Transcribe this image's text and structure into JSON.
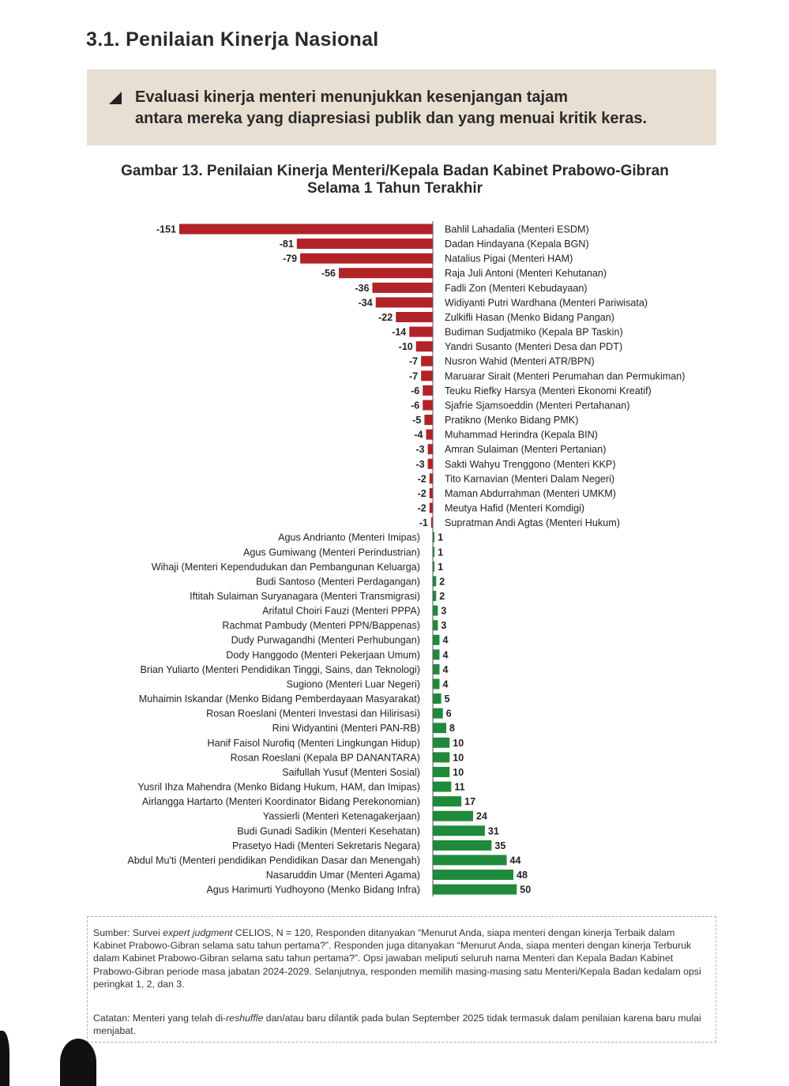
{
  "section": {
    "title": "3.1.   Penilaian Kinerja Nasional"
  },
  "callout": {
    "line1": "Evaluasi kinerja menteri menunjukkan kesenjangan tajam",
    "line2": "antara mereka yang diapresiasi publik dan yang menuai kritik keras."
  },
  "colors": {
    "negative": "#b12327",
    "positive": "#1f8a3b",
    "callout_bg": "#e7dfd1"
  },
  "chart_data": {
    "type": "bar",
    "orientation": "horizontal",
    "title": "Gambar 13. Penilaian Kinerja Menteri/Kepala Badan Kabinet Prabowo-Gibran",
    "subtitle": "Selama 1 Tahun Terakhir",
    "xlabel": "",
    "ylabel": "",
    "xlim": [
      -151,
      50
    ],
    "grid": false,
    "categories": [
      "Bahlil Lahadalia (Menteri ESDM)",
      "Dadan Hindayana (Kepala BGN)",
      "Natalius Pigai (Menteri HAM)",
      "Raja Juli Antoni (Menteri Kehutanan)",
      "Fadli Zon (Menteri Kebudayaan)",
      "Widiyanti Putri Wardhana (Menteri Pariwisata)",
      "Zulkifli Hasan (Menko Bidang Pangan)",
      "Budiman Sudjatmiko (Kepala BP Taskin)",
      "Yandri Susanto (Menteri Desa dan PDT)",
      "Nusron Wahid (Menteri ATR/BPN)",
      "Maruarar Sirait (Menteri Perumahan dan Permukiman)",
      "Teuku Riefky Harsya (Menteri Ekonomi Kreatif)",
      "Sjafrie Sjamsoeddin (Menteri Pertahanan)",
      "Pratikno (Menko Bidang PMK)",
      "Muhammad Herindra (Kepala BIN)",
      "Amran Sulaiman (Menteri Pertanian)",
      "Sakti Wahyu Trenggono (Menteri KKP)",
      "Tito Karnavian (Menteri Dalam Negeri)",
      "Maman Abdurrahman (Menteri UMKM)",
      "Meutya Hafid (Menteri Komdigi)",
      "Supratman Andi Agtas (Menteri Hukum)",
      "Agus Andrianto (Menteri Imipas)",
      "Agus Gumiwang (Menteri Perindustrian)",
      "Wihaji (Menteri Kependudukan dan Pembangunan Keluarga)",
      "Budi Santoso (Menteri Perdagangan)",
      "Iftitah Sulaiman Suryanagara (Menteri Transmigrasi)",
      "Arifatul Choiri Fauzi (Menteri PPPA)",
      "Rachmat Pambudy (Menteri PPN/Bappenas)",
      "Dudy Purwagandhi (Menteri Perhubungan)",
      "Dody Hanggodo (Menteri Pekerjaan Umum)",
      "Brian Yuliarto (Menteri Pendidikan Tinggi, Sains, dan Teknologi)",
      "Sugiono (Menteri Luar Negeri)",
      "Muhaimin Iskandar (Menko Bidang Pemberdayaan Masyarakat)",
      "Rosan Roeslani (Menteri Investasi dan Hilirisasi)",
      "Rini Widyantini (Menteri PAN-RB)",
      "Hanif Faisol Nurofiq (Menteri Lingkungan Hidup)",
      "Rosan Roeslani (Kepala BP DANANTARA)",
      "Saifullah Yusuf (Menteri Sosial)",
      "Yusril Ihza Mahendra (Menko Bidang Hukum, HAM, dan Imipas)",
      "Airlangga Hartarto (Menteri Koordinator Bidang Perekonomian)",
      "Yassierli (Menteri Ketenagakerjaan)",
      "Budi Gunadi Sadikin (Menteri Kesehatan)",
      "Prasetyo Hadi (Menteri Sekretaris Negara)",
      "Abdul Mu'ti (Menteri pendidikan Pendidikan Dasar dan Menengah)",
      "Nasaruddin Umar (Menteri Agama)",
      "Agus Harimurti Yudhoyono (Menko Bidang Infra)"
    ],
    "values": [
      -151,
      -81,
      -79,
      -56,
      -36,
      -34,
      -22,
      -14,
      -10,
      -7,
      -7,
      -6,
      -6,
      -5,
      -4,
      -3,
      -3,
      -2,
      -2,
      -2,
      -1,
      1,
      1,
      1,
      2,
      2,
      3,
      3,
      4,
      4,
      4,
      4,
      5,
      6,
      8,
      10,
      10,
      10,
      11,
      17,
      24,
      31,
      35,
      44,
      48,
      50
    ]
  },
  "note": {
    "source_prefix": "Sumber: Survei ",
    "source_italic": "expert judgment",
    "source_rest": " CELIOS, N = 120, Responden ditanyakan “Menurut Anda, siapa menteri dengan kinerja Terbaik dalam Kabinet Prabowo-Gibran selama satu tahun pertama?”. Responden juga ditanyakan “Menurut Anda, siapa menteri dengan kinerja Terburuk dalam Kabinet Prabowo-Gibran selama satu tahun pertama?”. Opsi jawaban meliputi seluruh nama Menteri dan Kepala Badan Kabinet Prabowo-Gibran periode masa jabatan 2024-2029. Selanjutnya, responden memilih masing-masing satu Menteri/Kepala Badan kedalam opsi peringkat 1, 2, dan 3.",
    "catatan_prefix": "Catatan: Menteri yang telah di-",
    "catatan_italic": "reshuffle",
    "catatan_rest": " dan/atau baru dilantik pada bulan September 2025 tidak termasuk dalam penilaian karena baru mulai menjabat."
  }
}
